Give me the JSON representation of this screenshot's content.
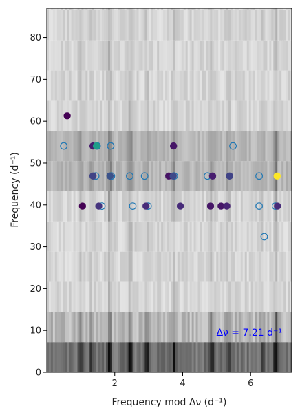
{
  "chart_data": {
    "type": "scatter",
    "title": "",
    "xlabel": "Frequency mod Δν (d⁻¹)",
    "ylabel": "Frequency (d⁻¹)",
    "xlim": [
      0,
      7.21
    ],
    "ylim": [
      0,
      87
    ],
    "xticks": [
      2,
      4,
      6
    ],
    "yticks": [
      0,
      10,
      20,
      30,
      40,
      50,
      60,
      70,
      80
    ],
    "annotation": "Δν = 7.21 d⁻¹",
    "annotation_color": "#0000ff",
    "background": "echelle-grayscale-strips",
    "legend": "none",
    "open_marker_color": "#1f77b4",
    "series": [
      {
        "marker": "open-circle",
        "points": [
          {
            "x": 0.5,
            "y": 54.1
          },
          {
            "x": 1.48,
            "y": 54.1
          },
          {
            "x": 1.88,
            "y": 54.1
          },
          {
            "x": 5.48,
            "y": 54.1
          },
          {
            "x": 1.44,
            "y": 46.9
          },
          {
            "x": 1.9,
            "y": 46.9
          },
          {
            "x": 2.44,
            "y": 46.9
          },
          {
            "x": 2.88,
            "y": 46.9
          },
          {
            "x": 3.75,
            "y": 46.9
          },
          {
            "x": 4.73,
            "y": 46.9
          },
          {
            "x": 6.25,
            "y": 46.9
          },
          {
            "x": 1.62,
            "y": 39.7
          },
          {
            "x": 2.53,
            "y": 39.7
          },
          {
            "x": 2.98,
            "y": 39.7
          },
          {
            "x": 6.25,
            "y": 39.7
          },
          {
            "x": 6.73,
            "y": 39.7
          },
          {
            "x": 6.4,
            "y": 32.4
          }
        ]
      },
      {
        "marker": "filled-circle",
        "colormap": "viridis",
        "points": [
          {
            "x": 0.6,
            "y": 61.3,
            "c": 0.0
          },
          {
            "x": 1.36,
            "y": 54.1,
            "c": 0.08
          },
          {
            "x": 1.46,
            "y": 54.1,
            "c": 0.55
          },
          {
            "x": 3.73,
            "y": 54.1,
            "c": 0.06
          },
          {
            "x": 1.36,
            "y": 46.9,
            "c": 0.2
          },
          {
            "x": 1.86,
            "y": 46.9,
            "c": 0.25
          },
          {
            "x": 3.59,
            "y": 46.9,
            "c": 0.05
          },
          {
            "x": 3.72,
            "y": 46.9,
            "c": 0.22
          },
          {
            "x": 4.88,
            "y": 46.9,
            "c": 0.08
          },
          {
            "x": 5.38,
            "y": 46.9,
            "c": 0.2
          },
          {
            "x": 6.78,
            "y": 46.9,
            "c": 1.0
          },
          {
            "x": 1.05,
            "y": 39.7,
            "c": 0.0
          },
          {
            "x": 1.53,
            "y": 39.7,
            "c": 0.15
          },
          {
            "x": 2.92,
            "y": 39.7,
            "c": 0.12
          },
          {
            "x": 3.93,
            "y": 39.7,
            "c": 0.12
          },
          {
            "x": 4.82,
            "y": 39.7,
            "c": 0.06
          },
          {
            "x": 5.13,
            "y": 39.7,
            "c": 0.06
          },
          {
            "x": 5.3,
            "y": 39.7,
            "c": 0.1
          },
          {
            "x": 6.79,
            "y": 39.7,
            "c": 0.12
          }
        ]
      }
    ]
  }
}
